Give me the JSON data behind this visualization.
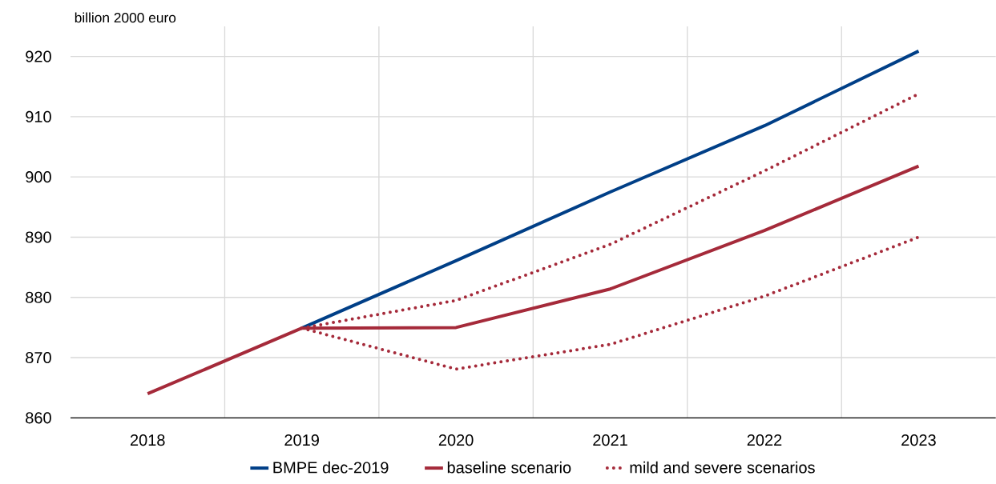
{
  "chart_data": {
    "type": "line",
    "ylabel": "billion 2000 euro",
    "categories": [
      "2018",
      "2019",
      "2020",
      "2021",
      "2022",
      "2023"
    ],
    "series": [
      {
        "name": "BMPE dec-2019",
        "color": "#003f87",
        "line_style": "solid",
        "values": [
          null,
          874.9,
          886.1,
          897.5,
          908.5,
          920.9
        ]
      },
      {
        "name": "baseline scenario",
        "color": "#a52a3a",
        "line_style": "solid",
        "values": [
          864.0,
          874.9,
          875.0,
          881.4,
          891.1,
          901.8
        ]
      },
      {
        "name": "mild and severe scenarios",
        "color": "#a52a3a",
        "line_style": "dotted",
        "values": [
          null,
          874.9,
          879.5,
          888.8,
          901.0,
          913.8
        ]
      },
      {
        "color": "#a52a3a",
        "line_style": "dotted",
        "values": [
          null,
          874.9,
          868.1,
          872.2,
          880.2,
          890.0
        ]
      }
    ],
    "ylim": [
      860,
      925
    ],
    "yticks": [
      860,
      870,
      880,
      890,
      900,
      910,
      920
    ],
    "grid": true,
    "legend": "bottom"
  }
}
